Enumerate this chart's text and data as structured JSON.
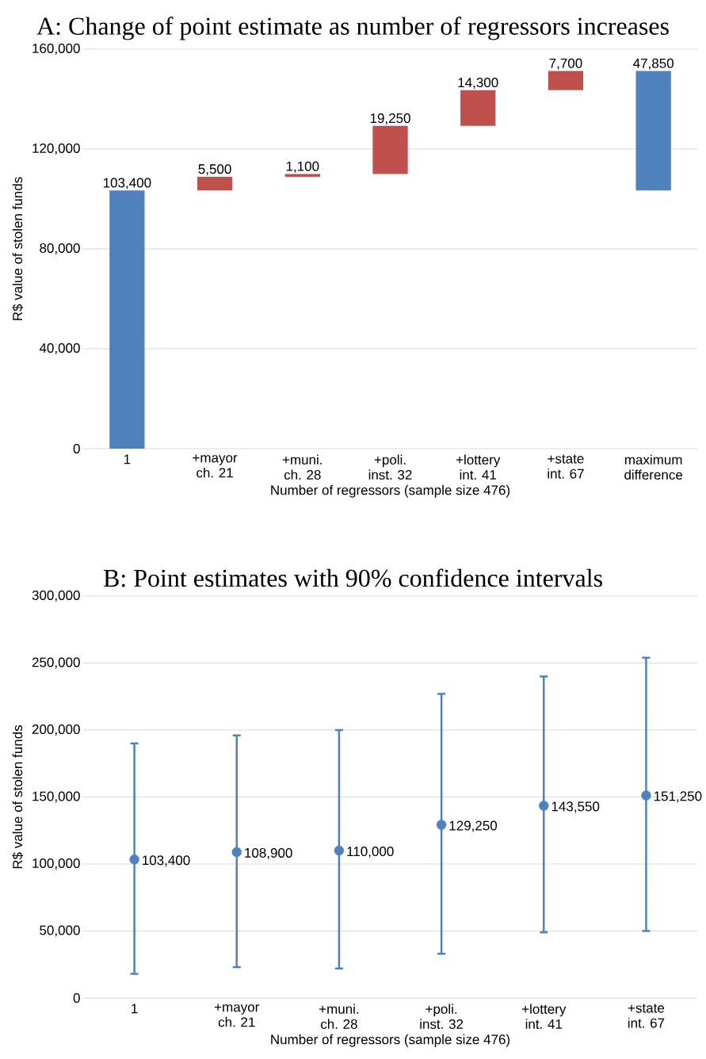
{
  "chart_data": [
    {
      "type": "bar",
      "title": "A: Change of point estimate as number of regressors increases",
      "xlabel": "Number of regressors (sample size 476)",
      "ylabel": "R$ value of stolen funds",
      "categories": [
        "1",
        "+mayor ch. 21",
        "+muni. ch. 28",
        "+poli. inst. 32",
        "+lottery int. 41",
        "+state int. 67",
        "maximum difference"
      ],
      "values": [
        103400,
        5500,
        1100,
        19250,
        14300,
        7700,
        47850
      ],
      "base": [
        0,
        103400,
        108900,
        110000,
        129250,
        143550,
        103400
      ],
      "colors": [
        "#4f81bd",
        "#c0504d",
        "#c0504d",
        "#c0504d",
        "#c0504d",
        "#c0504d",
        "#4f81bd"
      ],
      "value_labels": [
        "103,400",
        "5,500",
        "1,100",
        "19,250",
        "14,300",
        "7,700",
        "47,850"
      ],
      "ylim": [
        0,
        160000
      ],
      "yticks": [
        {
          "value": 0,
          "label": "0"
        },
        {
          "value": 40000,
          "label": "40,000"
        },
        {
          "value": 80000,
          "label": "80,000"
        },
        {
          "value": 120000,
          "label": "120,000"
        },
        {
          "value": 160000,
          "label": "160,000"
        }
      ],
      "grid": "y"
    },
    {
      "type": "scatter",
      "title": "B: Point estimates with 90% confidence intervals",
      "xlabel": "Number of regressors (sample size 476)",
      "ylabel": "R$ value of stolen funds",
      "categories": [
        "1",
        "+mayor ch. 21",
        "+muni. ch. 28",
        "+poli. inst. 32",
        "+lottery int. 41",
        "+state int. 67"
      ],
      "values": [
        103400,
        108900,
        110000,
        129250,
        143550,
        151250
      ],
      "errors": [
        [
          18000,
          190000
        ],
        [
          23000,
          196000
        ],
        [
          22000,
          200000
        ],
        [
          33000,
          227000
        ],
        [
          49000,
          240000
        ],
        [
          50000,
          254000
        ]
      ],
      "value_labels": [
        "103,400",
        "108,900",
        "110,000",
        "129,250",
        "143,550",
        "151,250"
      ],
      "color": "#4f81bd",
      "marker": "circle",
      "ylim": [
        0,
        300000
      ],
      "yticks": [
        {
          "value": 0,
          "label": "0"
        },
        {
          "value": 50000,
          "label": "50,000"
        },
        {
          "value": 100000,
          "label": "100,000"
        },
        {
          "value": 150000,
          "label": "150,000"
        },
        {
          "value": 200000,
          "label": "200,000"
        },
        {
          "value": 250000,
          "label": "250,000"
        },
        {
          "value": 300000,
          "label": "300,000"
        }
      ],
      "grid": "y"
    }
  ]
}
